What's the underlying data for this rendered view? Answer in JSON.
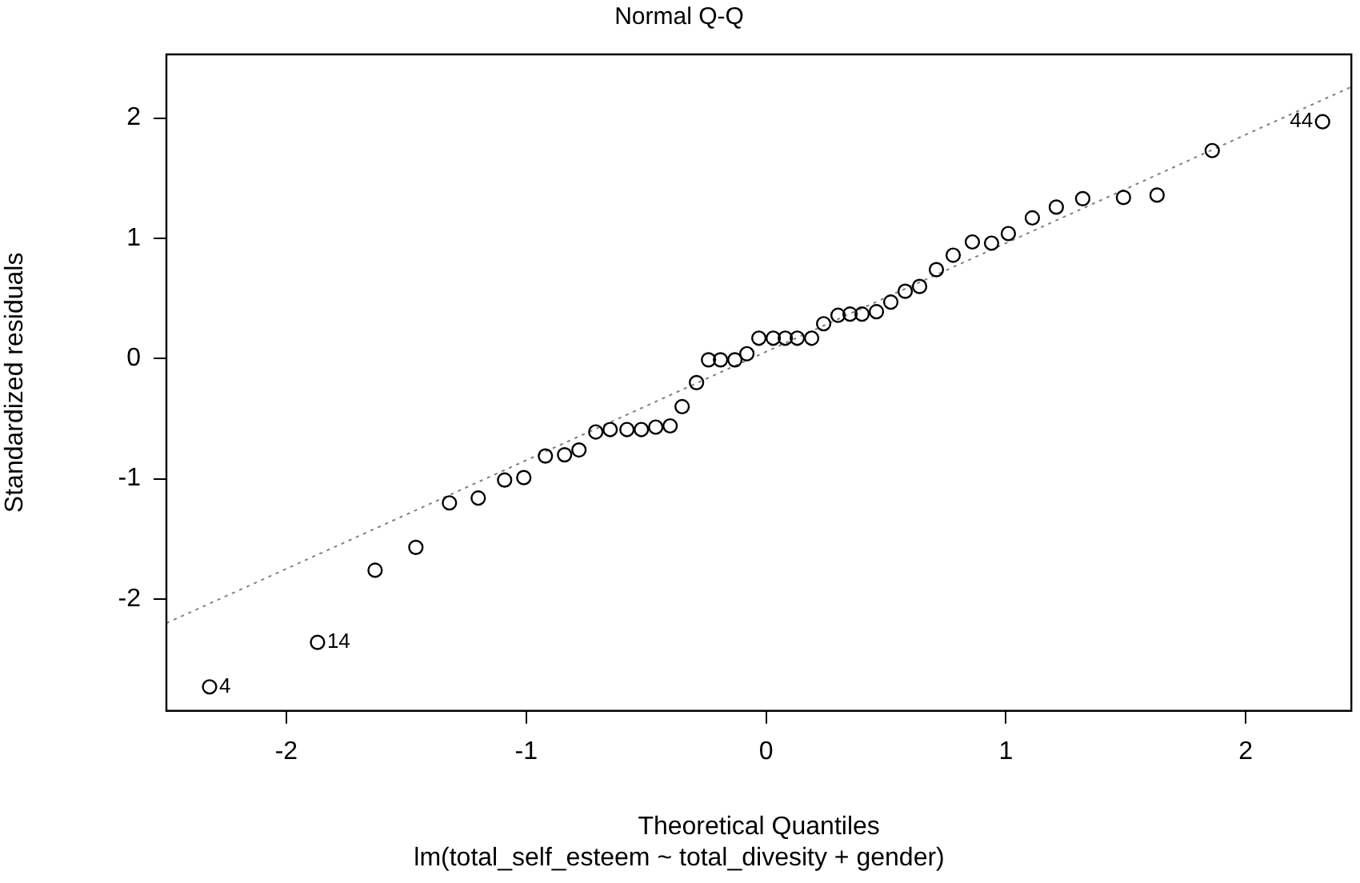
{
  "chart_data": {
    "type": "scatter",
    "title": "Normal Q-Q",
    "subtitle": "lm(total_self_esteem ~ total_divesity + gender)",
    "xlabel": "Theoretical Quantiles",
    "ylabel": "Standardized residuals",
    "xlim": [
      -2.5,
      2.44
    ],
    "ylim": [
      -2.93,
      2.53
    ],
    "xticks": [
      -2,
      -1,
      0,
      1,
      2
    ],
    "yticks": [
      -2,
      -1,
      0,
      1,
      2
    ],
    "grid": false,
    "legend": false,
    "marker": "circle",
    "series": [
      {
        "color": "#000000",
        "x": [
          -2.32,
          -1.87,
          -1.63,
          -1.46,
          -1.32,
          -1.2,
          -1.09,
          -1.01,
          -0.92,
          -0.84,
          -0.78,
          -0.71,
          -0.65,
          -0.58,
          -0.52,
          -0.46,
          -0.4,
          -0.35,
          -0.29,
          -0.24,
          -0.19,
          -0.13,
          -0.08,
          -0.03,
          0.03,
          0.08,
          0.13,
          0.19,
          0.24,
          0.3,
          0.35,
          0.4,
          0.46,
          0.52,
          0.58,
          0.64,
          0.71,
          0.78,
          0.86,
          0.94,
          1.01,
          1.11,
          1.21,
          1.32,
          1.49,
          1.63,
          1.86,
          2.32
        ],
        "values": [
          -2.73,
          -2.36,
          -1.76,
          -1.57,
          -1.2,
          -1.16,
          -1.01,
          -0.99,
          -0.81,
          -0.8,
          -0.76,
          -0.61,
          -0.59,
          -0.59,
          -0.59,
          -0.57,
          -0.56,
          -0.4,
          -0.2,
          -0.01,
          -0.01,
          -0.01,
          0.04,
          0.17,
          0.17,
          0.17,
          0.17,
          0.17,
          0.29,
          0.36,
          0.37,
          0.37,
          0.39,
          0.47,
          0.56,
          0.6,
          0.74,
          0.86,
          0.97,
          0.96,
          1.04,
          1.17,
          1.26,
          1.33,
          1.34,
          1.36,
          1.73,
          1.97
        ]
      },
      {
        "type": "line",
        "color": "#808080",
        "line_style": "dotted",
        "marker": "none",
        "x": [
          -2.5,
          2.44
        ],
        "values": [
          -2.2,
          2.26
        ]
      }
    ],
    "annotations": [
      {
        "text": "4",
        "x": -2.32,
        "y": -2.73
      },
      {
        "text": "14",
        "x": -1.87,
        "y": -2.36
      },
      {
        "text": "44",
        "x": 2.32,
        "y": 1.97
      }
    ]
  }
}
